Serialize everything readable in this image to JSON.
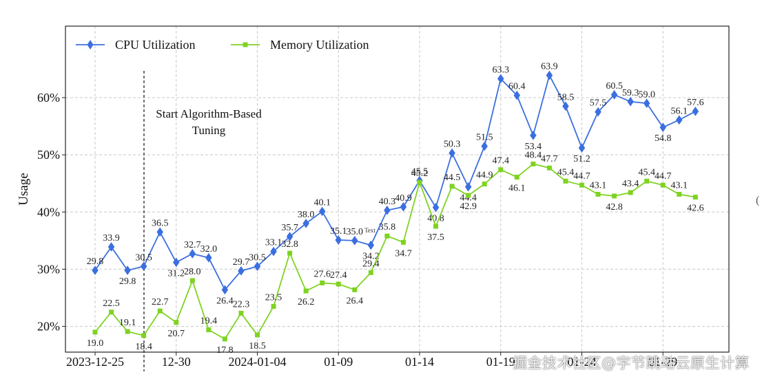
{
  "chart_data": {
    "type": "line",
    "title": "",
    "xlabel": "",
    "ylabel": "Usage",
    "ylim": [
      15.5,
      72.5
    ],
    "yticks": [
      20,
      30,
      40,
      50,
      60
    ],
    "ytick_format": "{v}%",
    "grid": true,
    "legend_position": "top-left",
    "xtick_labels": [
      "2023-12-25",
      "12-30",
      "2024-01-04",
      "01-09",
      "01-14",
      "01-19",
      "01-24",
      "01-29"
    ],
    "series": [
      {
        "name": "CPU Utilization",
        "color": "#3b6fe0",
        "marker": "diamond",
        "values": [
          29.8,
          33.9,
          29.8,
          30.5,
          36.5,
          31.2,
          32.7,
          32.0,
          26.4,
          29.7,
          30.5,
          33.1,
          35.7,
          38.0,
          40.1,
          35.1,
          35.0,
          34.2,
          40.3,
          40.9,
          45.5,
          40.8,
          50.3,
          44.4,
          51.5,
          63.3,
          60.4,
          53.4,
          63.9,
          58.5,
          51.2,
          57.5,
          60.5,
          59.3,
          59.0,
          54.8,
          56.1,
          57.6
        ]
      },
      {
        "name": "Memory Utilization",
        "color": "#7ed321",
        "marker": "square",
        "values": [
          19.0,
          22.5,
          19.1,
          18.4,
          22.7,
          20.7,
          28.0,
          19.4,
          17.8,
          22.3,
          18.5,
          23.5,
          32.8,
          26.2,
          27.6,
          27.4,
          26.4,
          29.4,
          35.8,
          34.7,
          45.2,
          37.5,
          44.5,
          42.9,
          44.9,
          47.4,
          46.1,
          48.4,
          47.7,
          45.4,
          44.7,
          43.1,
          42.8,
          43.4,
          45.4,
          44.7,
          43.1,
          42.6
        ]
      }
    ],
    "annotations": [
      {
        "text": "Start Algorithm-Based",
        "x_index": 3.4
      },
      {
        "text": "Tuning",
        "x_index": 3.4
      }
    ],
    "stray_text": "Text"
  },
  "watermark": "掘金技术社区@字节跳动云原生计算"
}
